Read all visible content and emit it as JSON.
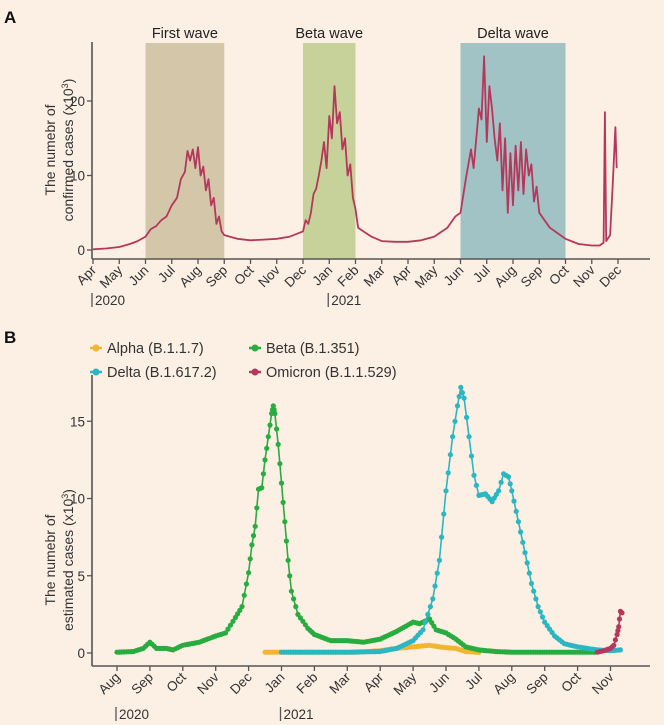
{
  "chart_data": [
    {
      "panel": "A",
      "type": "line",
      "title": "",
      "xlabel": "",
      "ylabel": "The numebr of confirmed cases (x10³)",
      "ylabel_lines": [
        "The numebr of",
        "confirmed cases (x10³)"
      ],
      "ylim": [
        0,
        27
      ],
      "yticks": [
        0,
        10,
        20
      ],
      "x_tick_labels": [
        "Apr",
        "May",
        "Jun",
        "Jul",
        "Aug",
        "Sep",
        "Oct",
        "Nov",
        "Dec",
        "Jan",
        "Feb",
        "Mar",
        "Apr",
        "May",
        "Jun",
        "Jul",
        "Aug",
        "Sep",
        "Oct",
        "Nov",
        "Dec"
      ],
      "year_labels": [
        {
          "label": "2020",
          "at_month_index": 0
        },
        {
          "label": "2021",
          "at_month_index": 9
        }
      ],
      "shaded_regions": [
        {
          "label": "First wave",
          "start_month_index": 2,
          "end_month_index": 5,
          "color": "#d3c6a9"
        },
        {
          "label": "Beta wave",
          "start_month_index": 8,
          "end_month_index": 10,
          "color": "#c7d19a"
        },
        {
          "label": "Delta wave",
          "start_month_index": 14,
          "end_month_index": 18,
          "color": "#a1c3c6"
        }
      ],
      "series": [
        {
          "name": "Confirmed cases",
          "color": "#b5385a",
          "points_month_index": [
            [
              0,
              0.1
            ],
            [
              0.5,
              0.2
            ],
            [
              1,
              0.4
            ],
            [
              1.4,
              0.8
            ],
            [
              1.7,
              1.2
            ],
            [
              1.9,
              1.6
            ],
            [
              2,
              1.8
            ],
            [
              2.2,
              2.8
            ],
            [
              2.4,
              3.2
            ],
            [
              2.6,
              4.0
            ],
            [
              2.8,
              4.5
            ],
            [
              3.0,
              6.0
            ],
            [
              3.2,
              7.0
            ],
            [
              3.35,
              9.5
            ],
            [
              3.5,
              10.5
            ],
            [
              3.6,
              13.3
            ],
            [
              3.7,
              12.0
            ],
            [
              3.8,
              13.5
            ],
            [
              3.9,
              11.0
            ],
            [
              4.0,
              13.8
            ],
            [
              4.1,
              10.0
            ],
            [
              4.2,
              11.2
            ],
            [
              4.3,
              8.0
            ],
            [
              4.4,
              9.5
            ],
            [
              4.5,
              6.0
            ],
            [
              4.6,
              7.0
            ],
            [
              4.7,
              3.5
            ],
            [
              4.8,
              4.5
            ],
            [
              4.9,
              2.5
            ],
            [
              5.0,
              2.0
            ],
            [
              5.2,
              1.8
            ],
            [
              5.5,
              1.5
            ],
            [
              6,
              1.3
            ],
            [
              6.5,
              1.4
            ],
            [
              7,
              1.5
            ],
            [
              7.5,
              1.8
            ],
            [
              8.0,
              2.5
            ],
            [
              8.1,
              4.0
            ],
            [
              8.2,
              3.5
            ],
            [
              8.3,
              5.0
            ],
            [
              8.4,
              7.5
            ],
            [
              8.5,
              8.2
            ],
            [
              8.6,
              10.0
            ],
            [
              8.7,
              12.0
            ],
            [
              8.8,
              14.5
            ],
            [
              8.9,
              11.0
            ],
            [
              9.0,
              18.0
            ],
            [
              9.1,
              15.0
            ],
            [
              9.2,
              22.0
            ],
            [
              9.3,
              17.0
            ],
            [
              9.4,
              18.5
            ],
            [
              9.5,
              13.5
            ],
            [
              9.6,
              15.0
            ],
            [
              9.7,
              10.0
            ],
            [
              9.8,
              11.5
            ],
            [
              9.9,
              7.0
            ],
            [
              10.0,
              5.5
            ],
            [
              10.1,
              3.0
            ],
            [
              10.3,
              2.5
            ],
            [
              10.6,
              1.8
            ],
            [
              11,
              1.2
            ],
            [
              11.5,
              1.1
            ],
            [
              12,
              1.1
            ],
            [
              12.5,
              1.3
            ],
            [
              13,
              1.8
            ],
            [
              13.5,
              3.0
            ],
            [
              13.8,
              4.5
            ],
            [
              14.0,
              5.0
            ],
            [
              14.2,
              9.5
            ],
            [
              14.4,
              13.5
            ],
            [
              14.5,
              11.0
            ],
            [
              14.6,
              15.0
            ],
            [
              14.7,
              19.0
            ],
            [
              14.8,
              17.5
            ],
            [
              14.9,
              26.0
            ],
            [
              15.0,
              14.5
            ],
            [
              15.1,
              22.0
            ],
            [
              15.2,
              19.0
            ],
            [
              15.3,
              15.0
            ],
            [
              15.4,
              12.0
            ],
            [
              15.5,
              17.0
            ],
            [
              15.6,
              8.0
            ],
            [
              15.7,
              15.0
            ],
            [
              15.8,
              5.0
            ],
            [
              15.9,
              13.0
            ],
            [
              16.0,
              6.0
            ],
            [
              16.1,
              14.0
            ],
            [
              16.2,
              8.0
            ],
            [
              16.3,
              14.5
            ],
            [
              16.4,
              7.5
            ],
            [
              16.5,
              13.5
            ],
            [
              16.6,
              10.0
            ],
            [
              16.7,
              11.5
            ],
            [
              16.8,
              6.5
            ],
            [
              16.9,
              8.5
            ],
            [
              17.0,
              5.0
            ],
            [
              17.2,
              4.0
            ],
            [
              17.4,
              3.0
            ],
            [
              17.6,
              2.5
            ],
            [
              17.8,
              2.0
            ],
            [
              18.0,
              1.5
            ],
            [
              18.5,
              0.8
            ],
            [
              19,
              0.6
            ],
            [
              19.3,
              0.6
            ],
            [
              19.45,
              1.0
            ],
            [
              19.5,
              18.5
            ],
            [
              19.55,
              1.2
            ],
            [
              19.7,
              2.0
            ],
            [
              19.8,
              9.0
            ],
            [
              19.9,
              16.5
            ],
            [
              19.95,
              11.0
            ]
          ]
        }
      ]
    },
    {
      "panel": "B",
      "type": "line",
      "title": "",
      "xlabel": "",
      "ylabel": "The numebr of estimated cases (x10³)",
      "ylabel_lines": [
        "The numebr of",
        "estimated cases (x10³)"
      ],
      "ylim": [
        -0.5,
        18
      ],
      "yticks": [
        0,
        5,
        10,
        15
      ],
      "x_tick_labels": [
        "Aug",
        "Sep",
        "Oct",
        "Nov",
        "Dec",
        "Jan",
        "Feb",
        "Mar",
        "Apr",
        "May",
        "Jun",
        "Jul",
        "Aug",
        "Sep",
        "Oct",
        "Nov"
      ],
      "year_labels": [
        {
          "label": "2020",
          "at_month_index": 0
        },
        {
          "label": "2021",
          "at_month_index": 5
        }
      ],
      "legend": {
        "placement": "top",
        "columns": 2
      },
      "series": [
        {
          "name": "Alpha (B.1.1.7)",
          "color": "#f2b531",
          "points_month_index": [
            [
              4.5,
              0.05
            ],
            [
              5,
              0.05
            ],
            [
              5.5,
              0.05
            ],
            [
              6,
              0.05
            ],
            [
              6.5,
              0.05
            ],
            [
              7,
              0.05
            ],
            [
              7.5,
              0.08
            ],
            [
              8,
              0.15
            ],
            [
              8.5,
              0.3
            ],
            [
              9,
              0.4
            ],
            [
              9.5,
              0.5
            ],
            [
              9.8,
              0.4
            ],
            [
              10,
              0.35
            ],
            [
              10.3,
              0.3
            ],
            [
              10.6,
              0.1
            ],
            [
              11,
              0.05
            ]
          ]
        },
        {
          "name": "Beta (B.1.351)",
          "color": "#29ac3f",
          "points_month_index": [
            [
              0,
              0.05
            ],
            [
              0.5,
              0.1
            ],
            [
              0.8,
              0.3
            ],
            [
              1.0,
              0.7
            ],
            [
              1.2,
              0.3
            ],
            [
              1.5,
              0.3
            ],
            [
              1.7,
              0.2
            ],
            [
              2.0,
              0.5
            ],
            [
              2.5,
              0.7
            ],
            [
              3.0,
              1.1
            ],
            [
              3.3,
              1.3
            ],
            [
              3.6,
              2.3
            ],
            [
              3.8,
              3.0
            ],
            [
              4.0,
              5.2
            ],
            [
              4.1,
              7.0
            ],
            [
              4.2,
              8.2
            ],
            [
              4.3,
              10.6
            ],
            [
              4.4,
              10.7
            ],
            [
              4.5,
              12.5
            ],
            [
              4.6,
              14.0
            ],
            [
              4.7,
              15.5
            ],
            [
              4.75,
              16.0
            ],
            [
              4.8,
              15.5
            ],
            [
              4.9,
              13.5
            ],
            [
              5.0,
              11.0
            ],
            [
              5.1,
              8.5
            ],
            [
              5.2,
              6.0
            ],
            [
              5.3,
              4.0
            ],
            [
              5.5,
              2.5
            ],
            [
              5.8,
              1.6
            ],
            [
              6.0,
              1.2
            ],
            [
              6.5,
              0.8
            ],
            [
              7,
              0.8
            ],
            [
              7.5,
              0.7
            ],
            [
              8,
              0.9
            ],
            [
              8.5,
              1.4
            ],
            [
              9,
              2.0
            ],
            [
              9.2,
              1.9
            ],
            [
              9.5,
              2.2
            ],
            [
              9.7,
              1.5
            ],
            [
              10,
              1.3
            ],
            [
              10.3,
              0.9
            ],
            [
              10.6,
              0.4
            ],
            [
              11,
              0.2
            ],
            [
              11.5,
              0.1
            ],
            [
              12,
              0.05
            ],
            [
              13,
              0.05
            ],
            [
              14,
              0.05
            ],
            [
              14.5,
              0.05
            ]
          ]
        },
        {
          "name": "Delta (B.1.617.2)",
          "color": "#2ab7c2",
          "points_month_index": [
            [
              5,
              0.05
            ],
            [
              6,
              0.05
            ],
            [
              7,
              0.05
            ],
            [
              8,
              0.1
            ],
            [
              8.5,
              0.3
            ],
            [
              9.0,
              0.8
            ],
            [
              9.3,
              1.5
            ],
            [
              9.6,
              3.5
            ],
            [
              9.8,
              6.0
            ],
            [
              10.0,
              10.5
            ],
            [
              10.2,
              14.0
            ],
            [
              10.35,
              16.0
            ],
            [
              10.45,
              17.2
            ],
            [
              10.55,
              16.5
            ],
            [
              10.7,
              14.0
            ],
            [
              10.85,
              11.5
            ],
            [
              11.0,
              10.2
            ],
            [
              11.2,
              10.3
            ],
            [
              11.4,
              9.8
            ],
            [
              11.6,
              10.5
            ],
            [
              11.75,
              11.6
            ],
            [
              11.9,
              11.4
            ],
            [
              12.0,
              10.5
            ],
            [
              12.2,
              8.5
            ],
            [
              12.4,
              6.5
            ],
            [
              12.6,
              4.5
            ],
            [
              12.8,
              3.0
            ],
            [
              13.0,
              2.0
            ],
            [
              13.3,
              1.1
            ],
            [
              13.6,
              0.6
            ],
            [
              14.0,
              0.4
            ],
            [
              14.3,
              0.3
            ],
            [
              14.6,
              0.2
            ],
            [
              15.0,
              0.15
            ],
            [
              15.3,
              0.2
            ]
          ]
        },
        {
          "name": "Omicron (B.1.1.529)",
          "color": "#b5385a",
          "points_month_index": [
            [
              14.6,
              0.05
            ],
            [
              14.8,
              0.15
            ],
            [
              15.0,
              0.3
            ],
            [
              15.1,
              0.5
            ],
            [
              15.2,
              1.2
            ],
            [
              15.25,
              1.7
            ],
            [
              15.3,
              2.7
            ],
            [
              15.35,
              2.6
            ]
          ]
        }
      ]
    }
  ],
  "panel_labels": [
    "A",
    "B"
  ]
}
